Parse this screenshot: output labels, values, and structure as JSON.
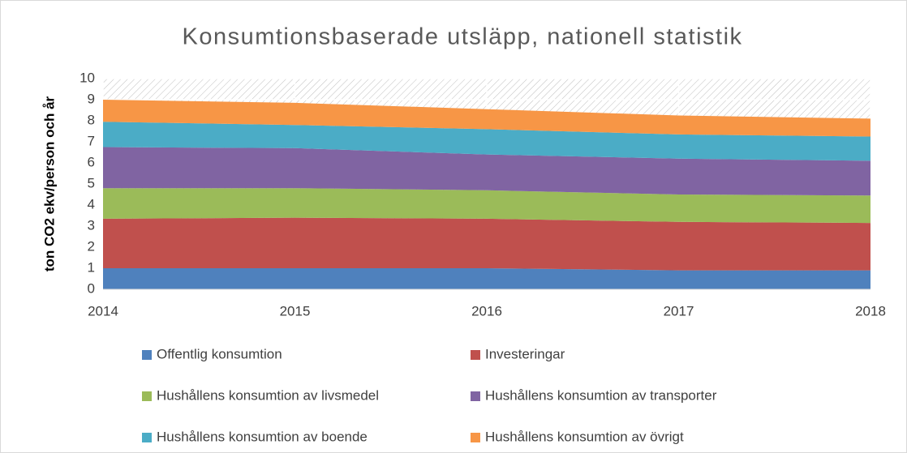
{
  "chart_data": {
    "type": "area",
    "title": "Konsumtionsbaserade utsläpp, nationell statistik",
    "y_label": "ton CO2 ekv/person och år",
    "x": [
      2014,
      2015,
      2016,
      2017,
      2018
    ],
    "xlim": [
      2014,
      2018
    ],
    "xticks": [
      2014,
      2015,
      2016,
      2017,
      2018
    ],
    "ylim": [
      0,
      10
    ],
    "yticks": [
      0,
      1,
      2,
      3,
      4,
      5,
      6,
      7,
      8,
      9,
      10
    ],
    "stacked": true,
    "grid": true,
    "series": [
      {
        "name": "Offentlig konsumtion",
        "color": "#4f81bd",
        "values": [
          1.0,
          1.0,
          1.0,
          0.9,
          0.9
        ]
      },
      {
        "name": "Investeringar",
        "color": "#c0504d",
        "values": [
          2.35,
          2.4,
          2.35,
          2.3,
          2.25
        ]
      },
      {
        "name": "Hushållens konsumtion av livsmedel",
        "color": "#9bbb59",
        "values": [
          1.45,
          1.4,
          1.35,
          1.3,
          1.3
        ]
      },
      {
        "name": "Hushållens konsumtion av transporter",
        "color": "#8064a2",
        "values": [
          1.95,
          1.9,
          1.7,
          1.7,
          1.65
        ]
      },
      {
        "name": "Hushållens konsumtion av boende",
        "color": "#4bacc6",
        "values": [
          1.2,
          1.1,
          1.2,
          1.15,
          1.15
        ]
      },
      {
        "name": "Hushållens konsumtion av övrigt",
        "color": "#f79646",
        "values": [
          1.05,
          1.05,
          0.95,
          0.9,
          0.85
        ]
      }
    ]
  }
}
